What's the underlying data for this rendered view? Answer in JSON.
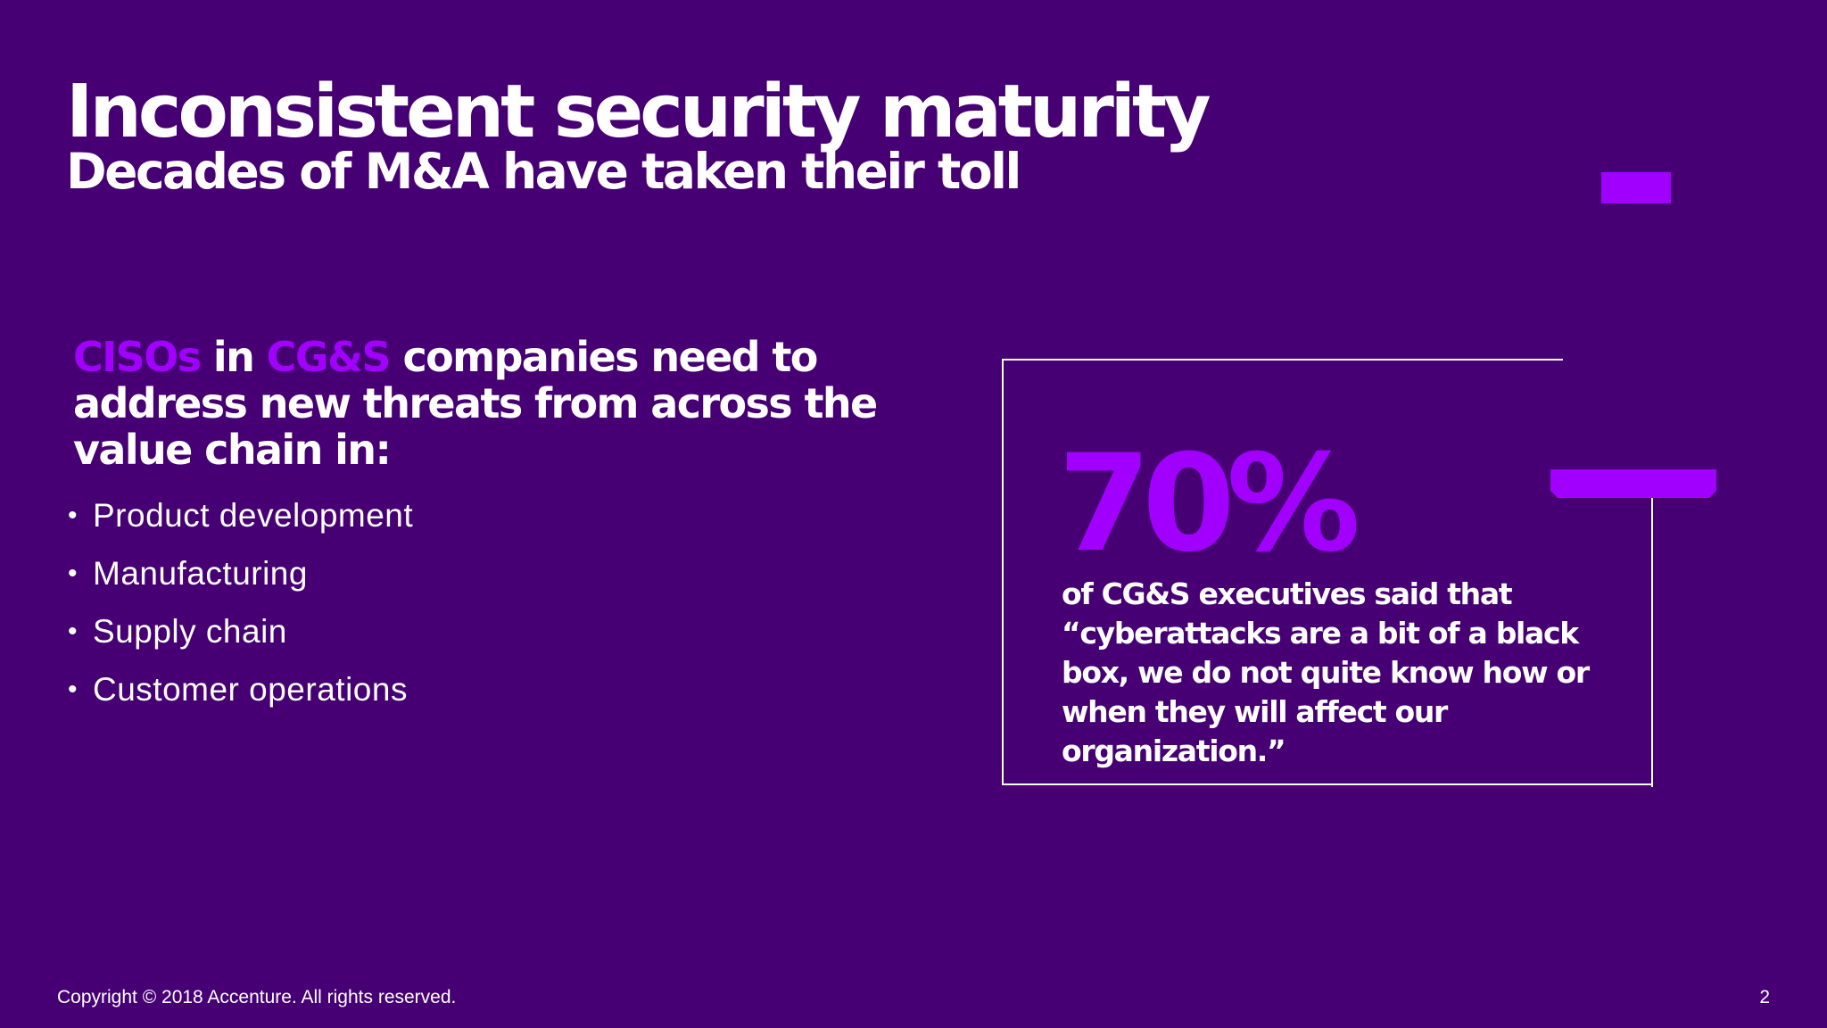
{
  "slide": {
    "title": "Inconsistent security maturity",
    "subtitle": "Decades of M&A have taken their toll",
    "lead": {
      "highlight_1": "CISOs",
      "text_1": " in ",
      "highlight_2": "CG&S",
      "text_2": " companies need to address new threats from across the value chain in:"
    },
    "bullets": [
      "Product development",
      "Manufacturing",
      "Supply chain",
      "Customer operations"
    ],
    "stat": {
      "number": "70%",
      "text": "of CG&S executives said that “cyberattacks are a bit of a black box, we do not quite know how or when they will affect our organization.”"
    },
    "footer": {
      "copyright": "Copyright © 2018 Accenture. All rights reserved.",
      "page_number": "2"
    }
  },
  "colors": {
    "background": "#460073",
    "accent": "#a100ff",
    "text": "#ffffff"
  }
}
